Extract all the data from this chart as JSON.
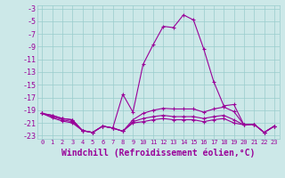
{
  "xlabel": "Windchill (Refroidissement éolien,°C)",
  "background_color": "#cce8e8",
  "grid_color": "#99cccc",
  "line_color": "#990099",
  "x_hours": [
    0,
    1,
    2,
    3,
    4,
    5,
    6,
    7,
    8,
    9,
    10,
    11,
    12,
    13,
    14,
    15,
    16,
    17,
    18,
    19,
    20,
    21,
    22,
    23
  ],
  "series1": [
    -19.5,
    -19.8,
    -20.3,
    -20.5,
    -22.2,
    -22.5,
    -21.5,
    -21.8,
    -16.5,
    -19.3,
    -11.8,
    -8.7,
    -5.8,
    -6.0,
    -4.0,
    -4.8,
    -9.3,
    -14.5,
    -18.3,
    -18.1,
    -21.3,
    -21.2,
    -22.5,
    -21.5
  ],
  "series2": [
    -19.5,
    -19.8,
    -20.3,
    -20.5,
    -22.2,
    -22.5,
    -21.5,
    -21.8,
    -22.3,
    -20.5,
    -19.5,
    -19.0,
    -18.7,
    -18.8,
    -18.8,
    -18.8,
    -19.3,
    -18.8,
    -18.5,
    -19.2,
    -21.3,
    -21.2,
    -22.5,
    -21.5
  ],
  "series3": [
    -19.5,
    -20.0,
    -20.5,
    -20.8,
    -22.2,
    -22.5,
    -21.5,
    -21.8,
    -22.3,
    -20.8,
    -20.3,
    -20.0,
    -19.8,
    -20.0,
    -20.0,
    -20.0,
    -20.3,
    -20.0,
    -19.8,
    -20.5,
    -21.3,
    -21.2,
    -22.5,
    -21.5
  ],
  "series4": [
    -19.5,
    -20.2,
    -20.7,
    -21.0,
    -22.2,
    -22.5,
    -21.5,
    -21.8,
    -22.3,
    -21.0,
    -20.8,
    -20.5,
    -20.3,
    -20.5,
    -20.5,
    -20.5,
    -20.8,
    -20.5,
    -20.3,
    -21.0,
    -21.3,
    -21.2,
    -22.5,
    -21.5
  ],
  "ylim": [
    -23.5,
    -2.5
  ],
  "yticks": [
    -3,
    -5,
    -7,
    -9,
    -11,
    -13,
    -15,
    -17,
    -19,
    -21,
    -23
  ],
  "xtick_labels": [
    "0",
    "1",
    "2",
    "3",
    "4",
    "5",
    "6",
    "7",
    "8",
    "9",
    "10",
    "11",
    "12",
    "13",
    "14",
    "15",
    "16",
    "17",
    "18",
    "19",
    "20",
    "21",
    "22",
    "23"
  ],
  "marker": "+",
  "markersize": 3,
  "linewidth": 0.8,
  "xlabel_fontsize": 7,
  "ytick_fontsize": 6,
  "xtick_fontsize": 5
}
